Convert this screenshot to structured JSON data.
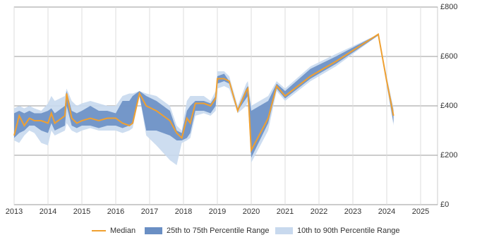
{
  "chart_data": {
    "type": "band-line",
    "x": [
      2013.0,
      2013.15,
      2013.3,
      2013.45,
      2013.6,
      2013.8,
      2014.0,
      2014.1,
      2014.2,
      2014.5,
      2014.55,
      2014.7,
      2014.85,
      2015.0,
      2015.25,
      2015.5,
      2015.75,
      2016.0,
      2016.2,
      2016.4,
      2016.5,
      2016.7,
      2016.9,
      2017.2,
      2017.6,
      2017.8,
      2017.95,
      2018.1,
      2018.2,
      2018.35,
      2018.6,
      2018.8,
      2018.95,
      2019.0,
      2019.2,
      2019.35,
      2019.6,
      2019.85,
      2019.9,
      2020.0,
      2020.5,
      2020.75,
      2021.0,
      2021.75,
      2022.5,
      2023.75,
      2024.0,
      2024.2
    ],
    "series": [
      {
        "name": "Median",
        "color": "#f0a030",
        "values": [
          280,
          360,
          320,
          350,
          340,
          340,
          330,
          370,
          330,
          360,
          450,
          350,
          330,
          340,
          350,
          340,
          350,
          350,
          330,
          320,
          330,
          450,
          400,
          380,
          340,
          290,
          270,
          350,
          330,
          410,
          410,
          400,
          430,
          510,
          510,
          500,
          380,
          460,
          470,
          220,
          350,
          480,
          440,
          520,
          580,
          690,
          500,
          360
        ]
      },
      {
        "name": "25th to 75th Percentile Range",
        "color": "#6a8fc4",
        "low": [
          270,
          290,
          300,
          320,
          320,
          300,
          290,
          330,
          300,
          320,
          400,
          320,
          310,
          320,
          320,
          310,
          320,
          320,
          310,
          320,
          330,
          440,
          300,
          300,
          280,
          260,
          260,
          270,
          290,
          380,
          380,
          370,
          400,
          490,
          500,
          490,
          380,
          430,
          440,
          190,
          330,
          470,
          430,
          510,
          570,
          685,
          490,
          330
        ],
        "high": [
          370,
          380,
          370,
          380,
          370,
          370,
          380,
          390,
          370,
          400,
          460,
          380,
          370,
          380,
          400,
          380,
          380,
          370,
          420,
          420,
          440,
          460,
          440,
          420,
          380,
          300,
          290,
          380,
          400,
          420,
          420,
          410,
          440,
          520,
          530,
          500,
          390,
          470,
          480,
          380,
          420,
          490,
          460,
          550,
          600,
          690,
          510,
          380
        ]
      },
      {
        "name": "10th to 90th Percentile Range",
        "color": "#c8d9ee",
        "low": [
          260,
          250,
          280,
          300,
          290,
          250,
          240,
          300,
          280,
          300,
          330,
          300,
          290,
          300,
          310,
          300,
          300,
          300,
          290,
          300,
          310,
          440,
          280,
          240,
          180,
          160,
          250,
          260,
          270,
          360,
          370,
          360,
          380,
          470,
          480,
          470,
          370,
          400,
          420,
          170,
          300,
          460,
          420,
          500,
          560,
          685,
          480,
          320
        ],
        "high": [
          390,
          400,
          390,
          400,
          390,
          380,
          410,
          440,
          420,
          440,
          470,
          420,
          400,
          410,
          420,
          410,
          400,
          400,
          440,
          450,
          450,
          460,
          450,
          440,
          400,
          320,
          300,
          420,
          440,
          440,
          440,
          420,
          460,
          540,
          540,
          520,
          400,
          490,
          500,
          400,
          440,
          500,
          470,
          560,
          610,
          690,
          520,
          390
        ]
      }
    ],
    "xlim": [
      2013,
      2025.5
    ],
    "xticks": [
      2013,
      2014,
      2015,
      2016,
      2017,
      2018,
      2019,
      2020,
      2021,
      2022,
      2023,
      2024,
      2025
    ],
    "ylim": [
      0,
      800
    ],
    "yticks": [
      {
        "value": 0,
        "label": "£0"
      },
      {
        "value": 200,
        "label": "£200"
      },
      {
        "value": 400,
        "label": "£400"
      },
      {
        "value": 600,
        "label": "£600"
      },
      {
        "value": 800,
        "label": "£800"
      }
    ],
    "grid": true
  }
}
